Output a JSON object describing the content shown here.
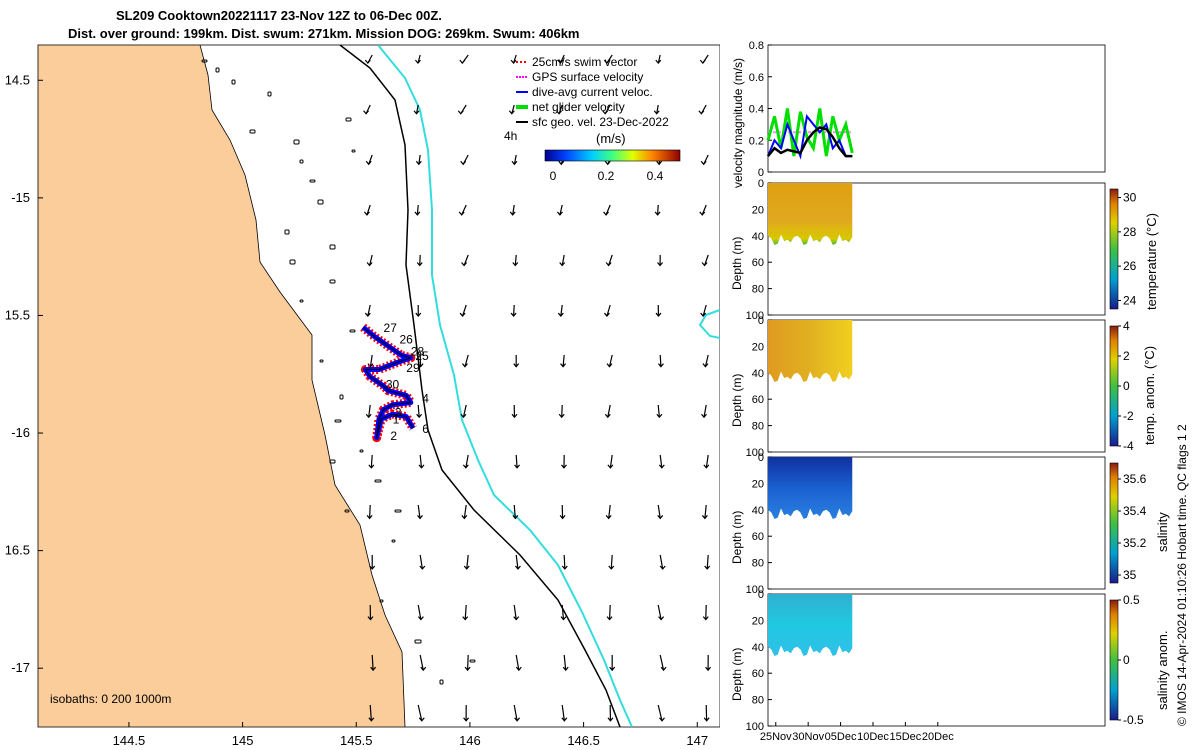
{
  "title": {
    "line1": "SL209 Cooktown20221117 23-Nov 12Z to 06-Dec 00Z.",
    "line2": "Dist. over ground: 199km. Dist. swum: 271km. Mission DOG: 269km. Swum: 406km"
  },
  "colors": {
    "land": "#fbcd9b",
    "isobath_1000": "#33dddd",
    "isobath_200": "#000000",
    "swim": "#ff0000",
    "gps": "#ff00ff",
    "dive_avg": "#0000ff",
    "net": "#00e000",
    "geo": "#000000"
  },
  "legend": {
    "items": [
      {
        "label": "25cm/s swim vector",
        "color": "#ff0000",
        "key": "swim"
      },
      {
        "label": "GPS surface velocity",
        "color": "#ff00ff",
        "key": "gps"
      },
      {
        "label": "dive-avg current veloc.",
        "color": "#0000ff",
        "key": "dive"
      },
      {
        "label": "net glider velocity",
        "color": "#00e000",
        "key": "net"
      },
      {
        "label": "sfc geo. vel. 23-Dec-2022",
        "color": "#000000",
        "key": "geo"
      }
    ],
    "hours": "4h",
    "colorbar_title": "(m/s)",
    "colorbar_ticks": [
      "0",
      "0.2",
      "0.4"
    ]
  },
  "isobaths_note": "isobaths: 0   200  1000m",
  "chart_data": [
    {
      "type": "scatter",
      "name": "map",
      "xlim": [
        144.1,
        147.1
      ],
      "ylim": [
        -17.25,
        -14.35
      ],
      "xticks": [
        144.5,
        145,
        145.5,
        146,
        146.5,
        147
      ],
      "xtick_labels": [
        "144.5",
        "145",
        "145.5",
        "146",
        "146.5",
        "147"
      ],
      "yticks": [
        -14.5,
        -15,
        -15.5,
        -16,
        -16.5,
        -17
      ],
      "ytick_labels": [
        "14.5",
        "-15",
        "15.5",
        "-16",
        "16.5",
        "-17"
      ],
      "track_day_labels": [
        {
          "label": "27",
          "lon": 145.62,
          "lat": -15.57
        },
        {
          "label": "26",
          "lon": 145.69,
          "lat": -15.62
        },
        {
          "label": "28",
          "lon": 145.74,
          "lat": -15.67
        },
        {
          "label": "25",
          "lon": 145.76,
          "lat": -15.69
        },
        {
          "label": "29",
          "lon": 145.72,
          "lat": -15.74
        },
        {
          "label": "30",
          "lon": 145.63,
          "lat": -15.81
        },
        {
          "label": "4",
          "lon": 145.79,
          "lat": -15.87
        },
        {
          "label": "3",
          "lon": 145.67,
          "lat": -15.93
        },
        {
          "label": "1",
          "lon": 145.66,
          "lat": -15.96
        },
        {
          "label": "6",
          "lon": 145.79,
          "lat": -16.0
        },
        {
          "label": "2",
          "lon": 145.65,
          "lat": -16.03
        }
      ],
      "glider_track": [
        [
          145.53,
          -15.55
        ],
        [
          145.58,
          -15.59
        ],
        [
          145.64,
          -15.63
        ],
        [
          145.7,
          -15.67
        ],
        [
          145.74,
          -15.68
        ],
        [
          145.68,
          -15.7
        ],
        [
          145.6,
          -15.73
        ],
        [
          145.54,
          -15.73
        ],
        [
          145.56,
          -15.76
        ],
        [
          145.62,
          -15.8
        ],
        [
          145.64,
          -15.82
        ],
        [
          145.72,
          -15.84
        ],
        [
          145.74,
          -15.87
        ],
        [
          145.66,
          -15.88
        ],
        [
          145.62,
          -15.9
        ],
        [
          145.6,
          -15.94
        ],
        [
          145.59,
          -16.02
        ],
        [
          145.61,
          -15.94
        ],
        [
          145.66,
          -15.92
        ],
        [
          145.72,
          -15.93
        ],
        [
          145.75,
          -15.98
        ]
      ]
    },
    {
      "type": "line",
      "name": "velocity",
      "ylabel": "velocity magnitude (m/s)",
      "ylim": [
        0,
        0.8
      ],
      "yticks": [
        0,
        0.2,
        0.4,
        0.6,
        0.8
      ],
      "ytick_labels": [
        "0",
        "0.2",
        "0.4",
        "0.6",
        "0.8"
      ],
      "xlim_days": [
        0,
        52
      ],
      "series": [
        {
          "key": "gps",
          "color": "#ff88ff",
          "days": [
            0,
            13
          ],
          "values": [
            0.25,
            0.25
          ]
        },
        {
          "key": "net",
          "color": "#00e000",
          "days": [
            0,
            1,
            2,
            3,
            4,
            5,
            6,
            7,
            8,
            9,
            10,
            11,
            12,
            13
          ],
          "values": [
            0.2,
            0.35,
            0.15,
            0.4,
            0.1,
            0.38,
            0.22,
            0.15,
            0.4,
            0.1,
            0.35,
            0.2,
            0.3,
            0.12
          ]
        },
        {
          "key": "dive",
          "color": "#0000ff",
          "days": [
            0,
            1,
            2,
            3,
            4,
            5,
            6,
            7,
            8,
            9,
            10,
            11,
            12,
            13
          ],
          "values": [
            0.1,
            0.2,
            0.15,
            0.3,
            0.2,
            0.1,
            0.35,
            0.3,
            0.25,
            0.3,
            0.15,
            0.2,
            0.1,
            0.1
          ]
        },
        {
          "key": "mean",
          "color": "#000000",
          "days": [
            0,
            1,
            2,
            3,
            4,
            5,
            6,
            7,
            8,
            9,
            10,
            11,
            12,
            13
          ],
          "values": [
            0.1,
            0.15,
            0.12,
            0.14,
            0.13,
            0.12,
            0.2,
            0.25,
            0.28,
            0.27,
            0.22,
            0.15,
            0.1,
            0.1
          ]
        }
      ]
    },
    {
      "type": "heatmap",
      "name": "temperature",
      "ylabel": "Depth (m)",
      "cbar_label": "temperature (°C)",
      "ylim": [
        0,
        100
      ],
      "yticks": [
        "0",
        "20",
        "40",
        "60",
        "80",
        "100"
      ],
      "cbar_ticks": [
        "24",
        "26",
        "28",
        "30"
      ],
      "cbar_range": [
        23.5,
        30.5
      ]
    },
    {
      "type": "heatmap",
      "name": "temp-anomaly",
      "ylabel": "Depth (m)",
      "cbar_label": "temp. anom. (°C)",
      "ylim": [
        0,
        100
      ],
      "yticks": [
        "0",
        "20",
        "40",
        "60",
        "80",
        "100"
      ],
      "cbar_ticks": [
        "-4",
        "-2",
        "0",
        "2",
        "4"
      ],
      "cbar_range": [
        -4,
        4
      ]
    },
    {
      "type": "heatmap",
      "name": "salinity",
      "ylabel": "Depth (m)",
      "cbar_label": "salinity",
      "ylim": [
        0,
        100
      ],
      "yticks": [
        "0",
        "20",
        "40",
        "60",
        "80",
        "100"
      ],
      "cbar_ticks": [
        "35",
        "35.2",
        "35.4",
        "35.6"
      ],
      "cbar_range": [
        34.95,
        35.7
      ]
    },
    {
      "type": "heatmap",
      "name": "salinity-anomaly",
      "ylabel": "Depth (m)",
      "cbar_label": "salinity anom.",
      "ylim": [
        0,
        100
      ],
      "yticks": [
        "0",
        "20",
        "40",
        "60",
        "80",
        "100"
      ],
      "cbar_ticks": [
        "-0.5",
        "0",
        "0.5"
      ],
      "cbar_range": [
        -0.5,
        0.5
      ],
      "xtick_labels": [
        "25Nov",
        "30Nov",
        "05Dec",
        "10Dec",
        "15Dec",
        "20Dec"
      ]
    }
  ],
  "footer_note": "© IMOS 14-Apr-2024 01:10:26 Hobart time. QC flags 1  2"
}
